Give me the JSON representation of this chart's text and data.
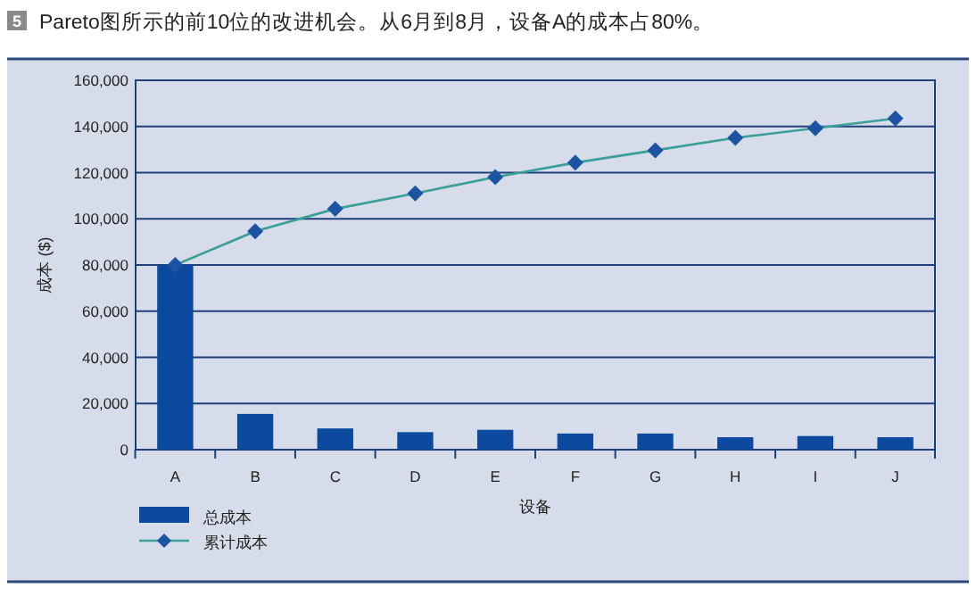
{
  "chart_data": {
    "type": "bar",
    "title": "Pareto图所示的前10位的改进机会。从6月到8月，设备A的成本占80%。",
    "annotations": [
      "5"
    ],
    "xlabel": "设备",
    "ylabel": "成本 ($)",
    "categories": [
      "A",
      "B",
      "C",
      "D",
      "E",
      "F",
      "G",
      "H",
      "I",
      "J"
    ],
    "series": [
      {
        "name": "总成本",
        "color": "#0b4a9e",
        "values": [
          80000,
          15500,
          9200,
          7600,
          8600,
          7000,
          7000,
          5400,
          5900,
          5400
        ]
      },
      {
        "name": "累计成本",
        "type": "line",
        "color": "#3a9f96",
        "marker": "diamond",
        "values": [
          80000,
          94600,
          104300,
          111000,
          118100,
          124300,
          129700,
          135100,
          139200,
          143500
        ]
      }
    ],
    "ylim": [
      0,
      160000
    ],
    "yticks": [
      {
        "value": 0,
        "label": "0"
      },
      {
        "value": 20000,
        "label": "20,000"
      },
      {
        "value": 40000,
        "label": "40,000"
      },
      {
        "value": 60000,
        "label": "60,000"
      },
      {
        "value": 80000,
        "label": "80,000"
      },
      {
        "value": 100000,
        "label": "100,000"
      },
      {
        "value": 120000,
        "label": "120,000"
      },
      {
        "value": 140000,
        "label": "140,000"
      },
      {
        "value": 160000,
        "label": "160,000"
      }
    ],
    "grid": "y",
    "legend": "bottom left"
  }
}
